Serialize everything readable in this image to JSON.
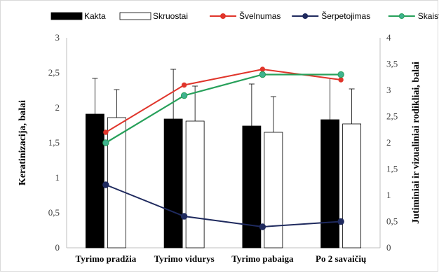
{
  "chart_data": {
    "type": "bar",
    "categories": [
      "Tyrimo pradžia",
      "Tyrimo vidurys",
      "Tyrimo pabaiga",
      "Po 2 savaičių"
    ],
    "y_left": {
      "label": "Keratinizacija, balai",
      "ylim": [
        0,
        3
      ],
      "ticks": [
        "0",
        "0,5",
        "1",
        "1,5",
        "2",
        "2,5",
        "3"
      ]
    },
    "y_right": {
      "label": "Jutiminiai ir vizualiniai rodikliai, balai",
      "ylim": [
        0,
        4
      ],
      "ticks": [
        "0",
        "0,5",
        "1",
        "1,5",
        "2",
        "2,5",
        "3",
        "3,5",
        "4"
      ]
    },
    "bar_series": [
      {
        "name": "Kakta",
        "axis": "left",
        "color": "#000000",
        "values": [
          1.91,
          1.84,
          1.74,
          1.83
        ],
        "error_upper": [
          2.42,
          2.55,
          2.34,
          2.42
        ]
      },
      {
        "name": "Skruostai",
        "axis": "left",
        "color": "#ffffff",
        "values": [
          1.86,
          1.81,
          1.65,
          1.77
        ],
        "error_upper": [
          2.26,
          2.31,
          2.16,
          2.27
        ]
      }
    ],
    "line_series": [
      {
        "name": "Švelnumas",
        "axis": "right",
        "color": "#e0352b",
        "values": [
          2.2,
          3.1,
          3.4,
          3.2
        ]
      },
      {
        "name": "Šerpetojimas",
        "axis": "right",
        "color": "#1f2a5e",
        "values": [
          1.2,
          0.6,
          0.4,
          0.5
        ]
      },
      {
        "name": "Skaistumas",
        "axis": "right",
        "color": "#27a05a",
        "values": [
          2.0,
          2.9,
          3.3,
          3.3
        ]
      }
    ],
    "legend_position": "top",
    "grid": false
  }
}
